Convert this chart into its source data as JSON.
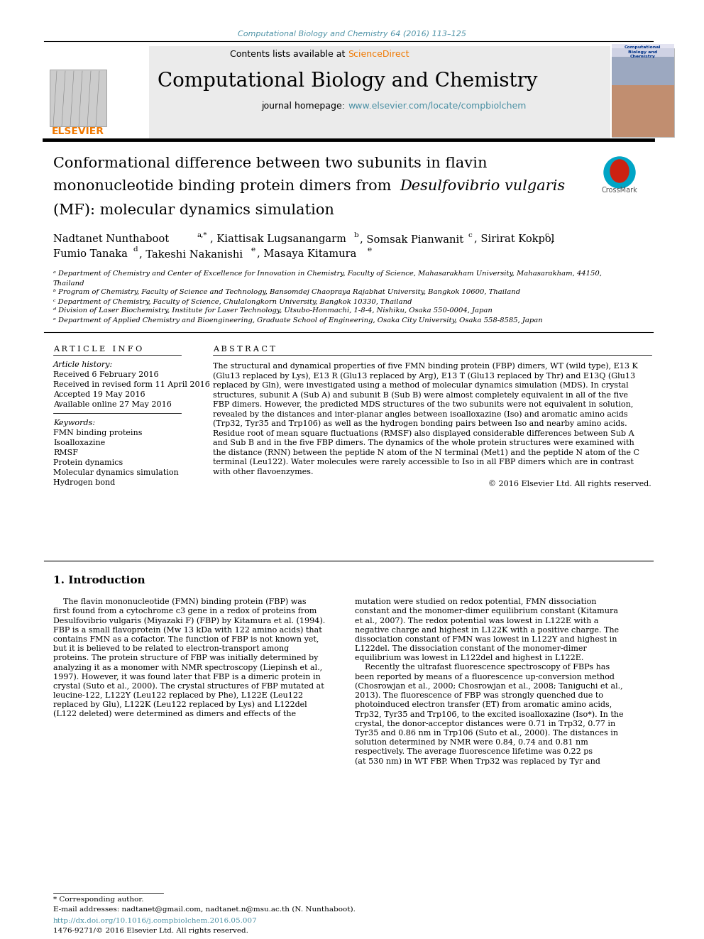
{
  "journal_ref": "Computational Biology and Chemistry 64 (2016) 113–125",
  "journal_ref_color": "#4a90a4",
  "journal_name": "Computational Biology and Chemistry",
  "contents_text": "Contents lists available at ",
  "sciencedirect_text": "ScienceDirect",
  "sciencedirect_color": "#f07800",
  "homepage_label": "journal homepage: ",
  "homepage_url": "www.elsevier.com/locate/compbiolchem",
  "homepage_color": "#4a90a4",
  "header_bg": "#e8e8e8",
  "title_line1": "Conformational difference between two subunits in flavin",
  "title_line2": "mononucleotide binding protein dimers from ",
  "title_italic": "Desulfovibrio vulgaris",
  "title_line3": "(MF): molecular dynamics simulation",
  "affil_a": "ᵃ Department of Chemistry and Center of Excellence for Innovation in Chemistry, Faculty of Science, Mahasarakham University, Mahasarakham, 44150,",
  "affil_a2": "Thailand",
  "affil_b": "ᵇ Program of Chemistry, Faculty of Science and Technology, Bansomdej Chaopraya Rajabhat University, Bangkok 10600, Thailand",
  "affil_c": "ᶜ Department of Chemistry, Faculty of Science, Chulalongkorn University, Bangkok 10330, Thailand",
  "affil_d": "ᵈ Division of Laser Biochemistry, Institute for Laser Technology, Utsubo-Honmachi, 1-8-4, Nishiku, Osaka 550-0004, Japan",
  "affil_e": "ᵉ Department of Applied Chemistry and Bioengineering, Graduate School of Engineering, Osaka City University, Osaka 558-8585, Japan",
  "article_info_header": "A R T I C L E   I N F O",
  "article_history_label": "Article history:",
  "received": "Received 6 February 2016",
  "received_revised": "Received in revised form 11 April 2016",
  "accepted": "Accepted 19 May 2016",
  "available": "Available online 27 May 2016",
  "keywords_label": "Keywords:",
  "keywords": [
    "FMN binding proteins",
    "Isoalloxazine",
    "RMSF",
    "Protein dynamics",
    "Molecular dynamics simulation",
    "Hydrogen bond"
  ],
  "abstract_header": "A B S T R A C T",
  "abstract_text": "The structural and dynamical properties of five FMN binding protein (FBP) dimers, WT (wild type), E13 K\n(Glu13 replaced by Lys), E13 R (Glu13 replaced by Arg), E13 T (Glu13 replaced by Thr) and E13Q (Glu13\nreplaced by Gln), were investigated using a method of molecular dynamics simulation (MDS). In crystal\nstructures, subunit A (Sub A) and subunit B (Sub B) were almost completely equivalent in all of the five\nFBP dimers. However, the predicted MDS structures of the two subunits were not equivalent in solution,\nrevealed by the distances and inter-planar angles between isoalloxazine (Iso) and aromatic amino acids\n(Trp32, Tyr35 and Trp106) as well as the hydrogen bonding pairs between Iso and nearby amino acids.\nResidue root of mean square fluctuations (RMSF) also displayed considerable differences between Sub A\nand Sub B and in the five FBP dimers. The dynamics of the whole protein structures were examined with\nthe distance (RNN) between the peptide N atom of the N terminal (Met1) and the peptide N atom of the C\nterminal (Leu122). Water molecules were rarely accessible to Iso in all FBP dimers which are in contrast\nwith other flavoenzymes.",
  "copyright": "© 2016 Elsevier Ltd. All rights reserved.",
  "intro_header": "1. Introduction",
  "intro_text_left": "    The flavin mononucleotide (FMN) binding protein (FBP) was\nfirst found from a cytochrome c3 gene in a redox of proteins from\nDesulfovibrio vulgaris (Miyazaki F) (FBP) by Kitamura et al. (1994).\nFBP is a small flavoprotein (Mw 13 kDa with 122 amino acids) that\ncontains FMN as a cofactor. The function of FBP is not known yet,\nbut it is believed to be related to electron-transport among\nproteins. The protein structure of FBP was initially determined by\nanalyzing it as a monomer with NMR spectroscopy (Liepinsh et al.,\n1997). However, it was found later that FBP is a dimeric protein in\ncrystal (Suto et al., 2000). The crystal structures of FBP mutated at\nleucine-122, L122Y (Leu122 replaced by Phe), L122E (Leu122\nreplaced by Glu), L122K (Leu122 replaced by Lys) and L122del\n(L122 deleted) were determined as dimers and effects of the",
  "intro_text_right": "mutation were studied on redox potential, FMN dissociation\nconstant and the monomer-dimer equilibrium constant (Kitamura\net al., 2007). The redox potential was lowest in L122E with a\nnegative charge and highest in L122K with a positive charge. The\ndissociation constant of FMN was lowest in L122Y and highest in\nL122del. The dissociation constant of the monomer-dimer\nequilibrium was lowest in L122del and highest in L122E.\n    Recently the ultrafast fluorescence spectroscopy of FBPs has\nbeen reported by means of a fluorescence up-conversion method\n(Chosrowjan et al., 2000; Chosrowjan et al., 2008; Taniguchi et al.,\n2013). The fluorescence of FBP was strongly quenched due to\nphotoinduced electron transfer (ET) from aromatic amino acids,\nTrp32, Tyr35 and Trp106, to the excited isoalloxazine (Iso*). In the\ncrystal, the donor-acceptor distances were 0.71 in Trp32, 0.77 in\nTyr35 and 0.86 nm in Trp106 (Suto et al., 2000). The distances in\nsolution determined by NMR were 0.84, 0.74 and 0.81 nm\nrespectively. The average fluorescence lifetime was 0.22 ps\n(at 530 nm) in WT FBP. When Trp32 was replaced by Tyr and",
  "footnote_corresponding": "* Corresponding author.",
  "footnote_email": "E-mail addresses: nadtanet@gmail.com, nadtanet.n@msu.ac.th (N. Nunthaboot).",
  "doi": "http://dx.doi.org/10.1016/j.compbiolchem.2016.05.007",
  "issn": "1476-9271/© 2016 Elsevier Ltd. All rights reserved.",
  "bg_color": "#ffffff",
  "text_color": "#000000",
  "link_color": "#4a90a4"
}
